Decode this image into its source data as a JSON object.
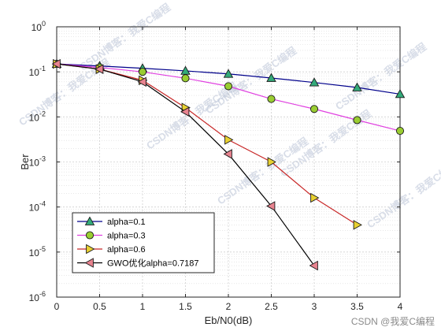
{
  "chart_data": {
    "type": "line",
    "xlabel": "Eb/N0(dB)",
    "ylabel": "Ber",
    "xlim": [
      0,
      4
    ],
    "ylim": [
      1e-06,
      1
    ],
    "yscale": "log",
    "grid": true,
    "minor_grid": true,
    "legend_position": "bottom-left",
    "x_ticks": [
      0,
      0.5,
      1,
      1.5,
      2,
      2.5,
      3,
      3.5,
      4
    ],
    "x_tick_labels": [
      "0",
      "0.5",
      "1",
      "1.5",
      "2",
      "2.5",
      "3",
      "3.5",
      "4"
    ],
    "y_ticks": [
      1e-06,
      1e-05,
      0.0001,
      0.001,
      0.01,
      0.1,
      1
    ],
    "y_tick_base": "10",
    "y_tick_exponents": [
      "-6",
      "-5",
      "-4",
      "-3",
      "-2",
      "-1",
      "0"
    ],
    "series": [
      {
        "name": "alpha=0.1",
        "color": "#00008b",
        "marker": "triangle-up",
        "marker_fill": "#33aa7a",
        "x": [
          0,
          0.5,
          1,
          1.5,
          2,
          2.5,
          3,
          3.5,
          4
        ],
        "y": [
          0.15,
          0.135,
          0.12,
          0.105,
          0.09,
          0.073,
          0.058,
          0.045,
          0.032
        ]
      },
      {
        "name": "alpha=0.3",
        "color": "#e040e0",
        "marker": "circle",
        "marker_fill": "#9acd32",
        "x": [
          0,
          0.5,
          1,
          1.5,
          2,
          2.5,
          3,
          3.5,
          4
        ],
        "y": [
          0.15,
          0.125,
          0.1,
          0.072,
          0.048,
          0.025,
          0.015,
          0.0085,
          0.0049
        ]
      },
      {
        "name": "alpha=0.6",
        "color": "#c82828",
        "marker": "triangle-right",
        "marker_fill": "#e8d030",
        "x": [
          0,
          0.5,
          1,
          1.5,
          2,
          2.5,
          3,
          3.5
        ],
        "y": [
          0.15,
          0.115,
          0.065,
          0.016,
          0.0031,
          0.001,
          0.00016,
          4e-05
        ]
      },
      {
        "name": "GWO优化alpha=0.7187",
        "color": "#000000",
        "marker": "triangle-left",
        "marker_fill": "#e8838f",
        "x": [
          0,
          0.5,
          1,
          1.5,
          2,
          2.5,
          3
        ],
        "y": [
          0.15,
          0.115,
          0.06,
          0.013,
          0.0015,
          0.000105,
          5e-06
        ]
      }
    ]
  },
  "watermarks": [
    "CSDN博客：我爱C编程",
    "CSDN博客：我爱C编程",
    "CSDN博客：我爱C编程",
    "CSDN博客：我爱C编程",
    "CSDN博客：我爱C编程",
    "CSDN博客：我爱C编程",
    "CSDN博客：我爱C编程",
    "CSDN博客：我爱C编程"
  ],
  "credit": "CSDN @我爱C编程"
}
